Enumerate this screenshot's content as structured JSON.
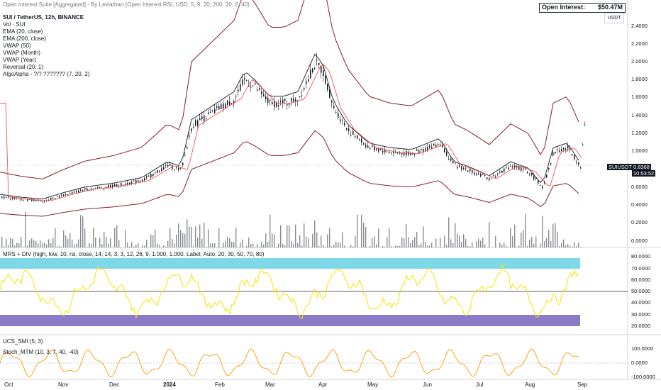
{
  "top_line": "Open Interest Suite [Aggregated] - By Leviathan (Open Interest RSI, USD, 5, 9, 20, 200, 20, 2, 40)",
  "open_interest": {
    "label": "Open Interest:",
    "value": "$50.47M"
  },
  "currency": "USDT",
  "symbol_line": "SUI / TetherUS, 12h, BINANCE",
  "indicators": [
    "Vol · SUI",
    "EMA (20, close)",
    "EMA (200, close)",
    "VWAP (50)",
    "VWAP (Month)",
    "VWAP (Year)",
    "Reversal (20, 1)",
    "AlgoAlpha - ?/? ??????? (7, 20, 2)"
  ],
  "price_axis": [
    "2.4000",
    "2.2000",
    "2.0000",
    "1.8000",
    "1.6000",
    "1.4000",
    "1.2000",
    "1.0000",
    "0.6000",
    "0.4000",
    "0.2000",
    "0.0000"
  ],
  "price_tag": {
    "symbol": "SUIUSDT",
    "price": "0.8368",
    "countdown": "10:53:52"
  },
  "rsi_pane": {
    "legend": "MRS + DIV (high, low, 10, rsi, close, 14, 14, 3, 3, 12, 26, 9, 1.000, 1.000, Label, Auto, 20, 30, 50, 70, 80)",
    "axis": [
      "80.0000",
      "70.0000",
      "60.0000",
      "50.0000",
      "40.0000",
      "30.0000",
      "20.0000"
    ]
  },
  "smi_pane": {
    "legend": "UCS_SMI (5, 3)"
  },
  "mtm_pane": {
    "legend": "Stoch_MTM (10, 3, 7, 40, -40)",
    "axis": [
      "100.0000",
      "0.0000",
      "-100.0000"
    ]
  },
  "x_axis": [
    "Oct",
    "Nov",
    "Dec",
    "2024",
    "Feb",
    "Mar",
    "Apr",
    "May",
    "Jun",
    "Jul",
    "Aug",
    "Sep"
  ],
  "colors": {
    "bull": "#26a69a",
    "bear": "#ef5350",
    "rsi_line": "#f5e400",
    "overbought": "#7fd8e8",
    "oversold": "#8b7ac9",
    "band": "#8b1a2b"
  }
}
